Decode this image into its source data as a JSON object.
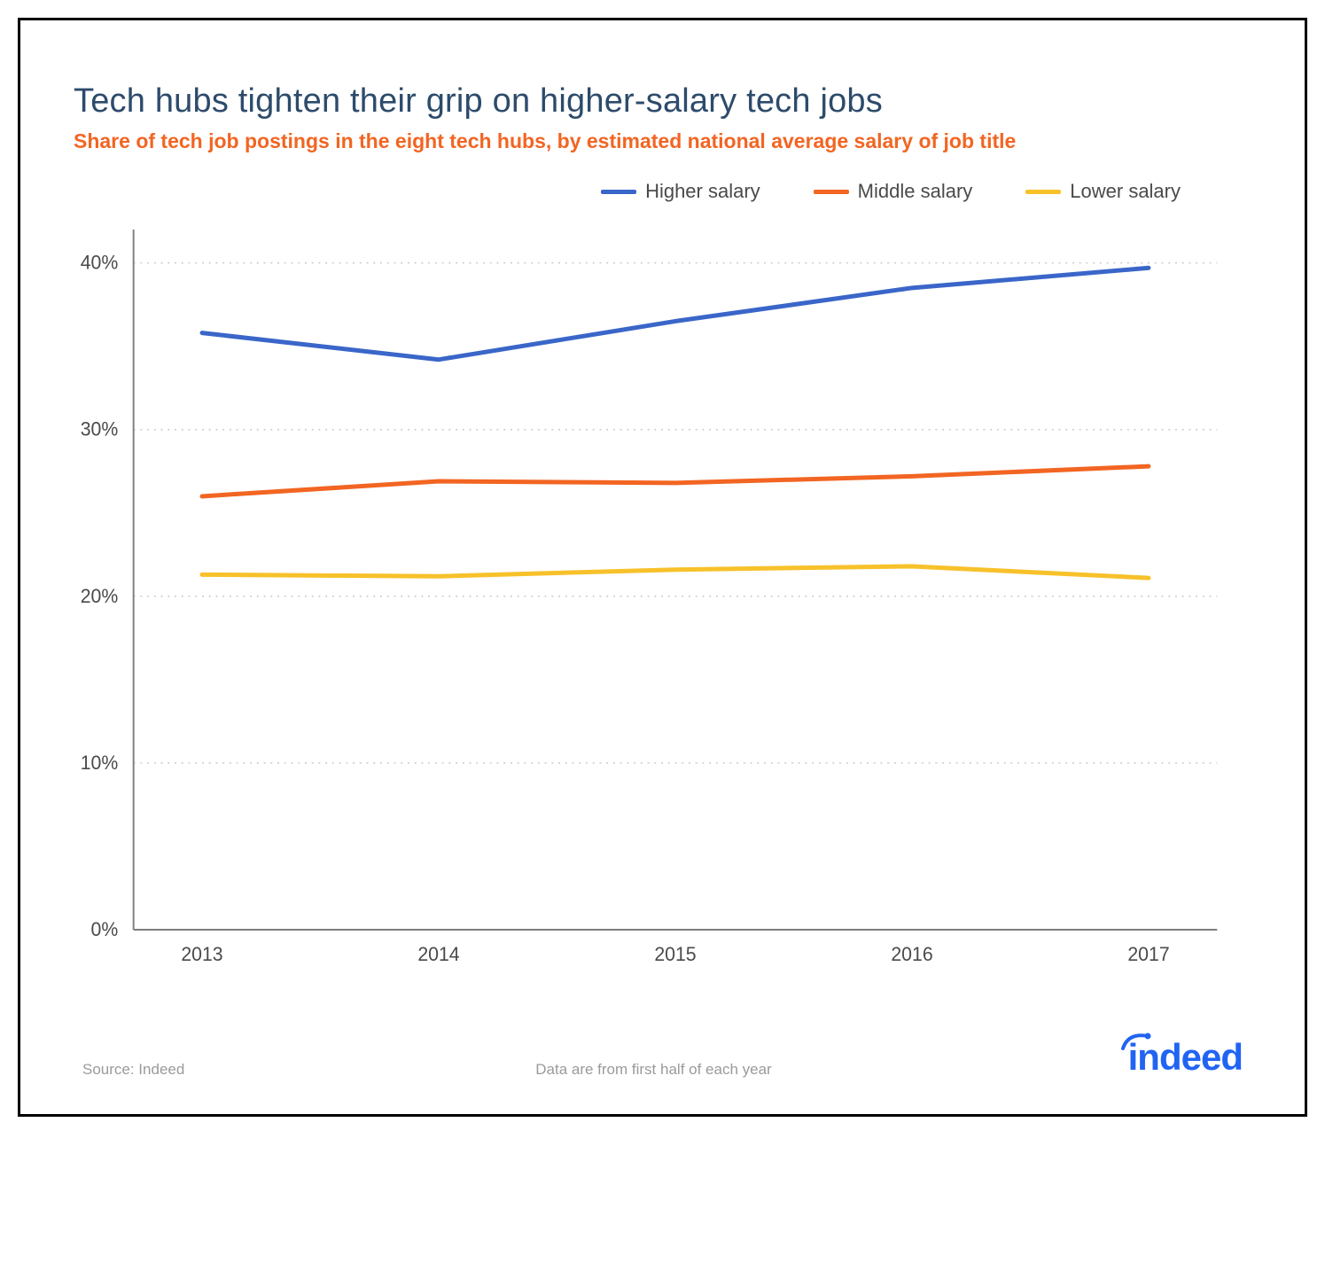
{
  "title": "Tech hubs tighten their grip on higher-salary tech jobs",
  "subtitle": "Share of tech job postings in the eight tech hubs, by estimated national average salary of job title",
  "chart": {
    "type": "line",
    "x_categories": [
      "2013",
      "2014",
      "2015",
      "2016",
      "2017"
    ],
    "y_ticks": [
      0,
      10,
      20,
      30,
      40
    ],
    "y_tick_labels": [
      "0%",
      "10%",
      "20%",
      "30%",
      "40%"
    ],
    "ylim": [
      0,
      42
    ],
    "series": [
      {
        "name": "Higher salary",
        "color": "#3a66c9",
        "values": [
          35.8,
          34.2,
          36.5,
          38.5,
          39.7
        ]
      },
      {
        "name": "Middle salary",
        "color": "#f26522",
        "values": [
          26.0,
          26.9,
          26.8,
          27.2,
          27.8
        ]
      },
      {
        "name": "Lower salary",
        "color": "#f7c12a",
        "values": [
          21.3,
          21.2,
          21.6,
          21.8,
          21.1
        ]
      }
    ],
    "line_width": 5,
    "background_color": "#ffffff",
    "grid_color": "#c9c9c9",
    "axis_color": "#7d7d7d",
    "tick_fontsize": 22,
    "tick_color": "#4a4a4a",
    "title_color": "#2d4b6b",
    "title_fontsize": 38,
    "subtitle_color": "#f26522",
    "subtitle_fontsize": 23
  },
  "legend": {
    "items": [
      {
        "label": "Higher salary",
        "color": "#3a66c9"
      },
      {
        "label": "Middle salary",
        "color": "#f26522"
      },
      {
        "label": "Lower salary",
        "color": "#f7c12a"
      }
    ]
  },
  "footer": {
    "source": "Source: Indeed",
    "note": "Data are from first half of each year",
    "logo_text": "indeed",
    "logo_color": "#2164f3"
  }
}
